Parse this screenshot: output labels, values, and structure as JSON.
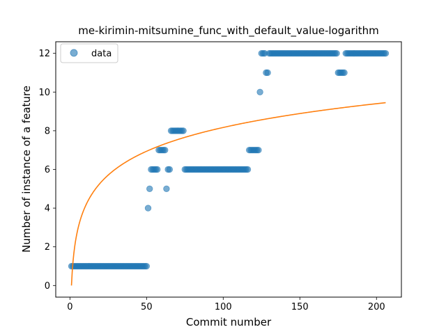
{
  "chart_data": {
    "type": "scatter",
    "title": "me-kirimin-mitsumine_func_with_default_value-logarithm",
    "xlabel": "Commit number",
    "ylabel": "Number of instance of a feature",
    "xlim": [
      -9.25,
      216.25
    ],
    "ylim": [
      -0.6,
      12.6
    ],
    "xticks": [
      0,
      50,
      100,
      150,
      200
    ],
    "yticks": [
      0,
      2,
      4,
      6,
      8,
      10,
      12
    ],
    "grid": false,
    "legend_position": "upper-left",
    "colors": {
      "data": "#1f77b4",
      "fit": "#ff7f0e"
    },
    "series": [
      {
        "name": "data",
        "kind": "scatter",
        "ranges": [
          {
            "x_from": 1,
            "x_to": 50,
            "y": 1
          },
          {
            "x_from": 51,
            "x_to": 51,
            "y": 4
          },
          {
            "x_from": 52,
            "x_to": 52,
            "y": 5
          },
          {
            "x_from": 53,
            "x_to": 57,
            "y": 6
          },
          {
            "x_from": 58,
            "x_to": 62,
            "y": 7
          },
          {
            "x_from": 63,
            "x_to": 63,
            "y": 5
          },
          {
            "x_from": 64,
            "x_to": 65,
            "y": 6
          },
          {
            "x_from": 66,
            "x_to": 74,
            "y": 8
          },
          {
            "x_from": 75,
            "x_to": 116,
            "y": 6
          },
          {
            "x_from": 117,
            "x_to": 123,
            "y": 7
          },
          {
            "x_from": 124,
            "x_to": 124,
            "y": 10
          },
          {
            "x_from": 125,
            "x_to": 127,
            "y": 12
          },
          {
            "x_from": 128,
            "x_to": 129,
            "y": 11
          },
          {
            "x_from": 130,
            "x_to": 174,
            "y": 12
          },
          {
            "x_from": 175,
            "x_to": 179,
            "y": 11
          },
          {
            "x_from": 180,
            "x_to": 206,
            "y": 12
          }
        ]
      },
      {
        "kind": "line",
        "function": "logarithm",
        "coefficients": {
          "a": 1.774,
          "b": 0
        },
        "x_range": [
          1,
          206
        ]
      }
    ],
    "legend": [
      {
        "label": "data",
        "marker": "circle"
      }
    ]
  }
}
